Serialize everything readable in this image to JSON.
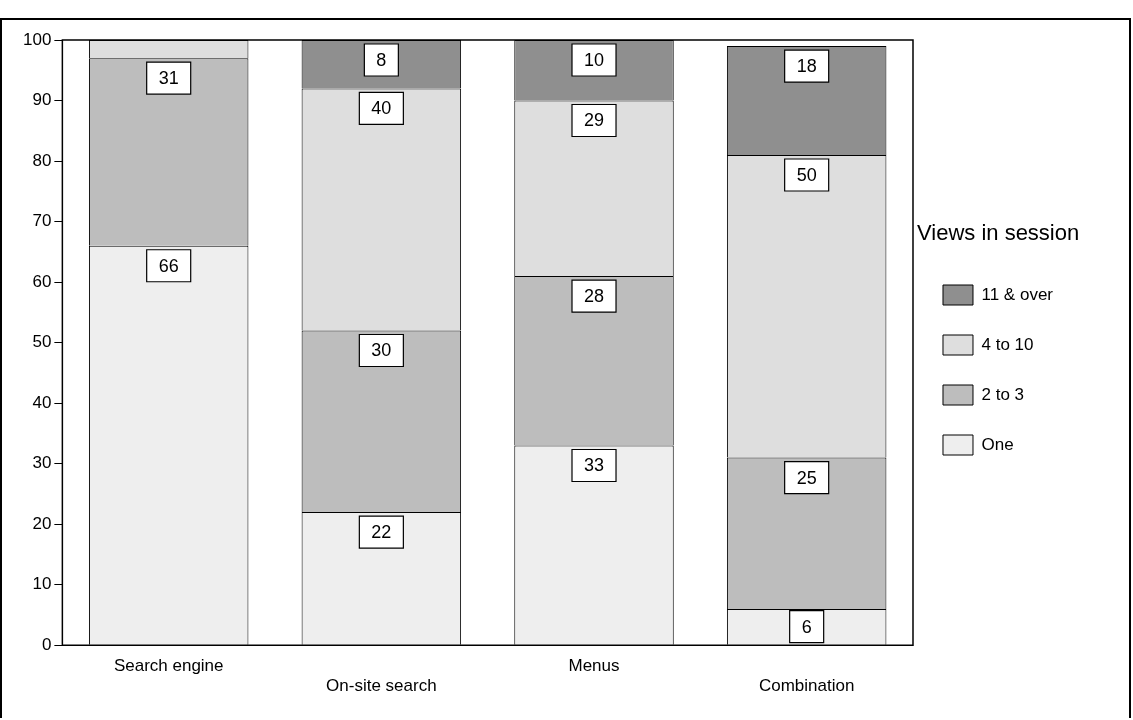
{
  "chart_data": {
    "type": "bar",
    "stacked": true,
    "categories": [
      "Search engine",
      "On-site search",
      "Menus",
      "Combination"
    ],
    "series": [
      {
        "name": "One",
        "color": "#eeeeee",
        "values": [
          66,
          22,
          33,
          6
        ],
        "value_labels": [
          "66",
          "22",
          "33",
          "6"
        ]
      },
      {
        "name": "2 to 3",
        "color": "#bdbdbd",
        "values": [
          31,
          30,
          28,
          25
        ],
        "value_labels": [
          "31",
          "30",
          "28",
          "25"
        ]
      },
      {
        "name": "4 to 10",
        "color": "#dedede",
        "values": [
          3,
          40,
          29,
          50
        ],
        "value_labels": [
          null,
          "40",
          "29",
          "50"
        ]
      },
      {
        "name": "11 & over",
        "color": "#8f8f8f",
        "values": [
          null,
          8,
          10,
          18
        ],
        "value_labels": [
          null,
          "8",
          "10",
          "18"
        ]
      }
    ],
    "ylim": [
      0,
      100
    ],
    "yticks": [
      0,
      10,
      20,
      30,
      40,
      50,
      60,
      70,
      80,
      90,
      100
    ],
    "grid": false,
    "legend": "right",
    "legend_title": "Views in session"
  }
}
